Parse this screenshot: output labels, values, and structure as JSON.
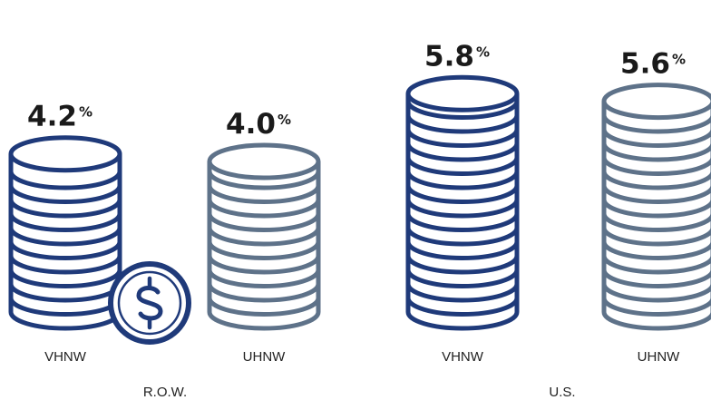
{
  "chart_data": {
    "type": "bar",
    "groups": [
      "R.O.W.",
      "U.S."
    ],
    "categories": [
      "VHNW",
      "UHNW"
    ],
    "unit": "%",
    "bars": [
      {
        "group": "R.O.W.",
        "category": "VHNW",
        "value": 4.2,
        "label": "4.2",
        "color": "#1f3a7a",
        "badge": "dollar-coin-icon"
      },
      {
        "group": "R.O.W.",
        "category": "UHNW",
        "value": 4.0,
        "label": "4.0",
        "color": "#5e7289"
      },
      {
        "group": "U.S.",
        "category": "VHNW",
        "value": 5.8,
        "label": "5.8",
        "color": "#1f3a7a"
      },
      {
        "group": "U.S.",
        "category": "UHNW",
        "value": 5.6,
        "label": "5.6",
        "color": "#5e7289"
      }
    ]
  }
}
